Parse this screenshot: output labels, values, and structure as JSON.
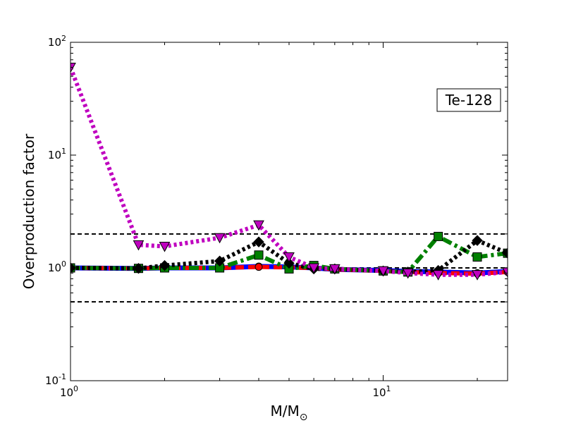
{
  "chart_data": {
    "type": "line",
    "title": "",
    "xlabel": "M/M",
    "xlabel_sub": "⊙",
    "ylabel": "Overproduction factor",
    "xscale": "log",
    "yscale": "log",
    "xlim": [
      1,
      25
    ],
    "ylim": [
      0.1,
      100
    ],
    "x_ticks": [
      {
        "value": 1,
        "base": "10",
        "exp": "0"
      },
      {
        "value": 10,
        "base": "10",
        "exp": "1"
      }
    ],
    "y_ticks": [
      {
        "value": 0.1,
        "base": "10",
        "exp": "-1"
      },
      {
        "value": 1,
        "base": "10",
        "exp": "0"
      },
      {
        "value": 10,
        "base": "10",
        "exp": "1"
      },
      {
        "value": 100,
        "base": "10",
        "exp": "2"
      }
    ],
    "grid": false,
    "annotation": {
      "text": "Te-128",
      "position": "top-right"
    },
    "reference_lines": [
      {
        "y": 2.0,
        "style": "dashed",
        "color": "#000000"
      },
      {
        "y": 1.0,
        "style": "dashed",
        "color": "#000000"
      },
      {
        "y": 0.5,
        "style": "dashed",
        "color": "#000000"
      }
    ],
    "series": [
      {
        "color": "#0000ff",
        "line_style": "solid",
        "marker": "circle",
        "x": [
          1,
          1.65,
          2,
          3,
          4,
          5,
          6,
          7,
          10,
          12,
          15,
          20,
          25
        ],
        "y": [
          1.0,
          0.99,
          1.0,
          1.0,
          1.03,
          1.02,
          1.0,
          0.97,
          0.95,
          0.93,
          0.92,
          0.9,
          0.93
        ]
      },
      {
        "color": "#ff0000",
        "line_style": "dashed",
        "marker": "circle",
        "x": [
          1,
          1.65,
          2,
          3,
          4,
          5,
          6,
          7,
          10,
          12,
          15,
          20,
          25
        ],
        "y": [
          1.0,
          0.99,
          1.0,
          1.0,
          1.02,
          1.01,
          1.0,
          0.97,
          0.94,
          0.92,
          0.9,
          0.89,
          0.92
        ]
      },
      {
        "color": "#008000",
        "line_style": "dashdot",
        "marker": "square",
        "x": [
          1,
          1.65,
          2,
          3,
          4,
          5,
          6,
          7,
          10,
          12,
          15,
          20,
          25
        ],
        "y": [
          1.0,
          0.99,
          1.0,
          1.0,
          1.3,
          0.98,
          1.05,
          0.98,
          0.94,
          0.92,
          1.9,
          1.25,
          1.35
        ]
      },
      {
        "color": "#000000",
        "line_style": "dotted",
        "marker": "diamond",
        "x": [
          1,
          1.65,
          2,
          3,
          4,
          5,
          6,
          7,
          10,
          12,
          15,
          20,
          25
        ],
        "y": [
          1.0,
          0.99,
          1.05,
          1.15,
          1.7,
          1.1,
          0.98,
          0.98,
          0.94,
          0.92,
          0.95,
          1.75,
          1.35
        ]
      },
      {
        "color": "#bf00bf",
        "line_style": "dotted",
        "marker": "triangle-down",
        "x": [
          1,
          1.65,
          2,
          3,
          4,
          5,
          6,
          7,
          10,
          12,
          15,
          20,
          25
        ],
        "y": [
          60,
          1.6,
          1.55,
          1.85,
          2.4,
          1.25,
          1.0,
          0.98,
          0.94,
          0.9,
          0.87,
          0.87,
          0.92
        ]
      }
    ]
  }
}
